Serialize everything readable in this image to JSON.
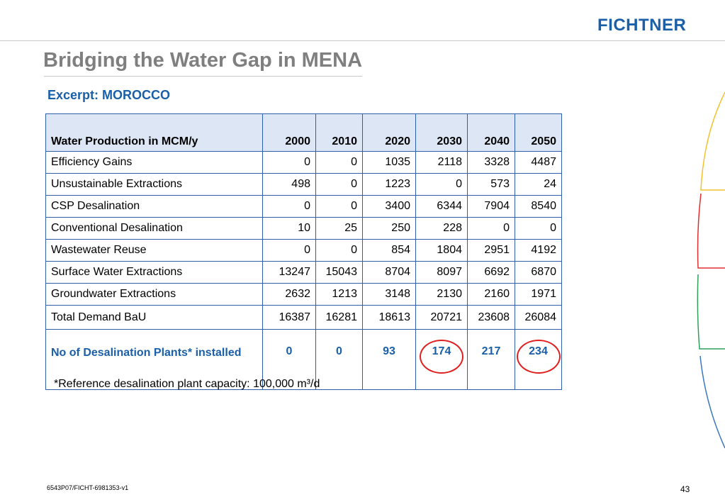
{
  "header": {
    "logo_text": "FICHTNER"
  },
  "slide": {
    "title": "Bridging the Water Gap in MENA",
    "subtitle": "Excerpt: MOROCCO"
  },
  "table": {
    "header_label": "Water Production in MCM/y",
    "years": [
      "2000",
      "2010",
      "2020",
      "2030",
      "2040",
      "2050"
    ],
    "rows": [
      {
        "label": "Efficiency Gains",
        "values": [
          "0",
          "0",
          "1035",
          "2118",
          "3328",
          "4487"
        ]
      },
      {
        "label": "Unsustainable Extractions",
        "values": [
          "498",
          "0",
          "1223",
          "0",
          "573",
          "24"
        ]
      },
      {
        "label": "CSP Desalination",
        "values": [
          "0",
          "0",
          "3400",
          "6344",
          "7904",
          "8540"
        ]
      },
      {
        "label": "Conventional Desalination",
        "values": [
          "10",
          "25",
          "250",
          "228",
          "0",
          "0"
        ]
      },
      {
        "label": "Wastewater Reuse",
        "values": [
          "0",
          "0",
          "854",
          "1804",
          "2951",
          "4192"
        ]
      },
      {
        "label": "Surface Water Extractions",
        "values": [
          "13247",
          "15043",
          "8704",
          "8097",
          "6692",
          "6870"
        ]
      },
      {
        "label": "Groundwater Extractions",
        "values": [
          "2632",
          "1213",
          "3148",
          "2130",
          "2160",
          "1971"
        ]
      },
      {
        "label": "Total Demand BaU",
        "values": [
          "16387",
          "16281",
          "18613",
          "20721",
          "23608",
          "26084"
        ]
      }
    ],
    "plants_row": {
      "label": "No of Desalination Plants* installed",
      "values": [
        "0",
        "0",
        "93",
        "174",
        "217",
        "234"
      ]
    }
  },
  "footnote": "*Reference desalination plant capacity: 100,000 m³/d",
  "footer": {
    "doc_id": "6543P07/FICHT-6981353-v1",
    "page": "43"
  },
  "colors": {
    "accent_blue": "#1a5fa8",
    "header_fill": "#dce6f5",
    "highlight_ring": "#e02020"
  }
}
